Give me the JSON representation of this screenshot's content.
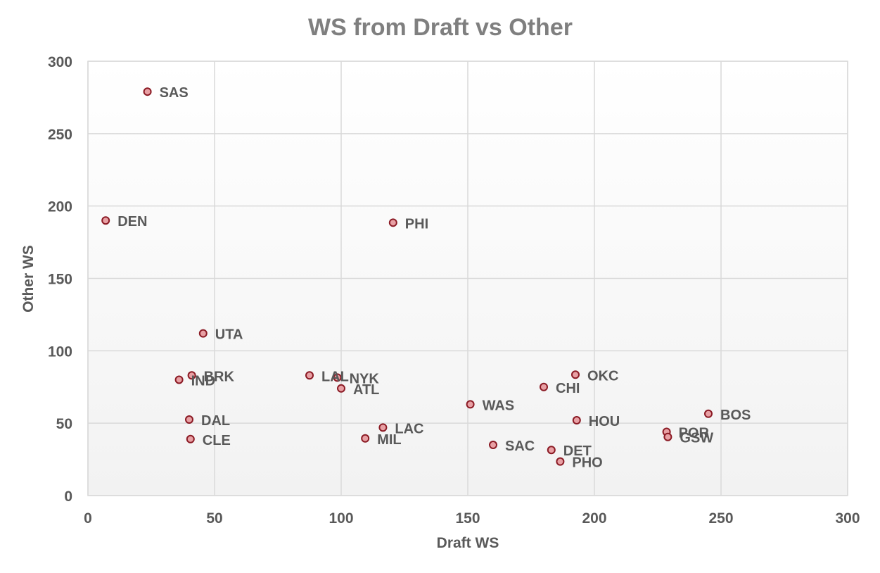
{
  "chart_data": {
    "type": "scatter",
    "title": "WS from Draft vs Other",
    "xlabel": "Draft WS",
    "ylabel": "Other WS",
    "xlim": [
      0,
      300
    ],
    "ylim": [
      0,
      300
    ],
    "x_ticks": [
      0,
      50,
      100,
      150,
      200,
      250,
      300
    ],
    "y_ticks": [
      0,
      50,
      100,
      150,
      200,
      250,
      300
    ],
    "grid": true,
    "legend": "none",
    "colors": {
      "marker_fill": "#e8a0a4",
      "marker_stroke": "#8b1a24",
      "plot_background_top": "#ffffff",
      "plot_background_bottom": "#f2f2f2"
    },
    "points": [
      {
        "label": "SAS",
        "x": 23.5,
        "y": 279
      },
      {
        "label": "DEN",
        "x": 7,
        "y": 190
      },
      {
        "label": "PHI",
        "x": 120.5,
        "y": 188.5
      },
      {
        "label": "UTA",
        "x": 45.5,
        "y": 112
      },
      {
        "label": "BRK",
        "x": 41,
        "y": 83
      },
      {
        "label": "IND",
        "x": 36,
        "y": 80
      },
      {
        "label": "LAL",
        "x": 87.5,
        "y": 83
      },
      {
        "label": "NYK",
        "x": 98.5,
        "y": 81.5
      },
      {
        "label": "ATL",
        "x": 100,
        "y": 74
      },
      {
        "label": "OKC",
        "x": 192.5,
        "y": 83.5
      },
      {
        "label": "CHI",
        "x": 180,
        "y": 75
      },
      {
        "label": "WAS",
        "x": 151,
        "y": 63
      },
      {
        "label": "BOS",
        "x": 245,
        "y": 56.5
      },
      {
        "label": "HOU",
        "x": 193,
        "y": 52
      },
      {
        "label": "DAL",
        "x": 40,
        "y": 52.5
      },
      {
        "label": "LAC",
        "x": 116.5,
        "y": 47
      },
      {
        "label": "POR",
        "x": 228.5,
        "y": 44
      },
      {
        "label": "GSW",
        "x": 229,
        "y": 40.5
      },
      {
        "label": "CLE",
        "x": 40.5,
        "y": 39
      },
      {
        "label": "MIL",
        "x": 109.5,
        "y": 39.5
      },
      {
        "label": "SAC",
        "x": 160,
        "y": 35
      },
      {
        "label": "DET",
        "x": 183,
        "y": 31.5
      },
      {
        "label": "PHO",
        "x": 186.5,
        "y": 23.5
      }
    ]
  }
}
